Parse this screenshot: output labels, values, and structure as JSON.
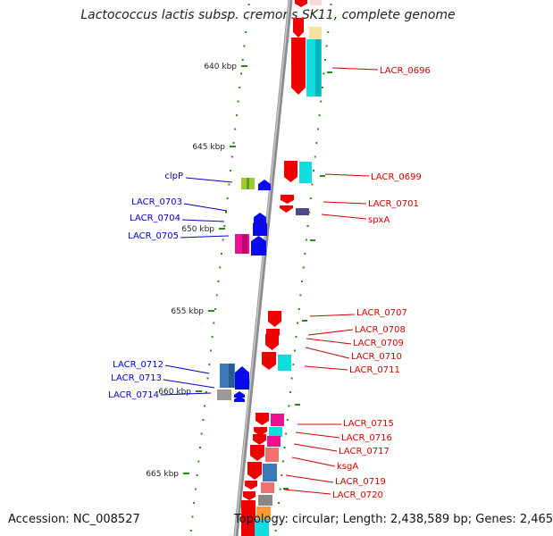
{
  "title": "Lactococcus lactis subsp. cremoris SK11, complete genome",
  "footer": {
    "accession": "Accession: NC_008527",
    "topology": "Topology: circular; Length: 2,438,589 bp; Genes: 2,465"
  },
  "kbp_labels": [
    "640 kbp",
    "645 kbp",
    "650 kbp",
    "655 kbp",
    "660 kbp",
    "665 kbp"
  ],
  "reverse_genes": [
    "LACR_0696",
    "LACR_0699",
    "LACR_0701",
    "spxA",
    "LACR_0707",
    "LACR_0708",
    "LACR_0709",
    "LACR_0710",
    "LACR_0711",
    "LACR_0715",
    "LACR_0716",
    "LACR_0717",
    "ksgA",
    "LACR_0719",
    "LACR_0720"
  ],
  "forward_genes": [
    "clpP",
    "LACR_0703",
    "LACR_0704",
    "LACR_0705",
    "LACR_0712",
    "LACR_0713",
    "LACR_0714"
  ],
  "colors": {
    "reverse_label": "#d40000",
    "forward_label": "#0000c8",
    "backbone": "#909090",
    "tick": "#2a8a1a",
    "gene_red": "#ee0000",
    "gene_blue": "#0a0aee",
    "cyan": "#10dde0",
    "magenta": "#ee1090",
    "steel": "#3a78b8",
    "salmon": "#f07070"
  }
}
